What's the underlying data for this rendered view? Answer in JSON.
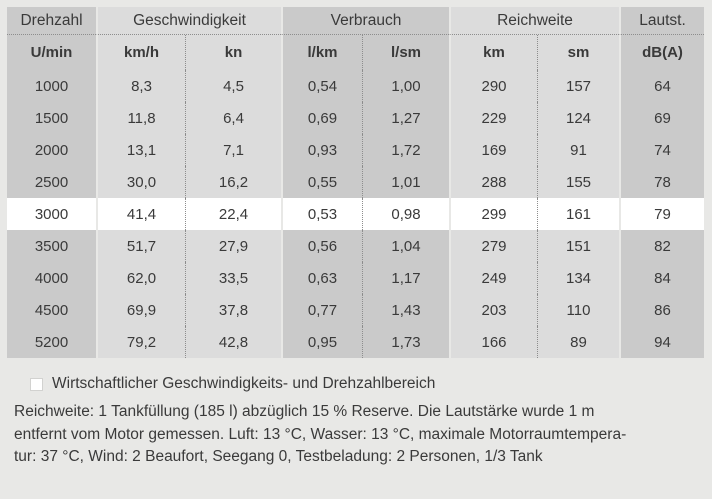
{
  "table": {
    "groups": [
      {
        "label": "Drehzahl"
      },
      {
        "label": "Geschwindigkeit"
      },
      {
        "label": "Verbrauch"
      },
      {
        "label": "Reichweite"
      },
      {
        "label": "Lautst."
      }
    ],
    "units": [
      "U/min",
      "km/h",
      "kn",
      "l/km",
      "l/sm",
      "km",
      "sm",
      "dB(A)"
    ],
    "rows": [
      [
        "1000",
        "8,3",
        "4,5",
        "0,54",
        "1,00",
        "290",
        "157",
        "64"
      ],
      [
        "1500",
        "11,8",
        "6,4",
        "0,69",
        "1,27",
        "229",
        "124",
        "69"
      ],
      [
        "2000",
        "13,1",
        "7,1",
        "0,93",
        "1,72",
        "169",
        "91",
        "74"
      ],
      [
        "2500",
        "30,0",
        "16,2",
        "0,55",
        "1,01",
        "288",
        "155",
        "78"
      ],
      [
        "3000",
        "41,4",
        "22,4",
        "0,53",
        "0,98",
        "299",
        "161",
        "79"
      ],
      [
        "3500",
        "51,7",
        "27,9",
        "0,56",
        "1,04",
        "279",
        "151",
        "82"
      ],
      [
        "4000",
        "62,0",
        "33,5",
        "0,63",
        "1,17",
        "249",
        "134",
        "84"
      ],
      [
        "4500",
        "69,9",
        "37,8",
        "0,77",
        "1,43",
        "203",
        "110",
        "86"
      ],
      [
        "5200",
        "79,2",
        "42,8",
        "0,95",
        "1,73",
        "166",
        "89",
        "94"
      ]
    ],
    "highlighted_row_value": "3000"
  },
  "legend": {
    "label": "Wirtschaftlicher Geschwindigkeits- und Drehzahlbereich",
    "swatch_color": "#ffffff"
  },
  "footnote": {
    "lines": [
      "Reichweite: 1 Tankfüllung (185 l) abzüglich 15 % Reserve. Die Lautstärke wurde 1 m",
      "entfernt vom Motor gemessen. Luft: 13 °C, Wasser: 13 °C, maximale Motorraumtempera-",
      "tur: 37 °C, Wind: 2 Beaufort, Seegang 0, Testbeladung: 2 Personen, 1/3 Tank"
    ]
  },
  "colors": {
    "bg": "#e8e8e6",
    "dark": "#cacaca",
    "light": "#dcdcdc",
    "hl": "#ffffff",
    "txt": "#3a3a3a",
    "dot": "#8d8d8d"
  }
}
